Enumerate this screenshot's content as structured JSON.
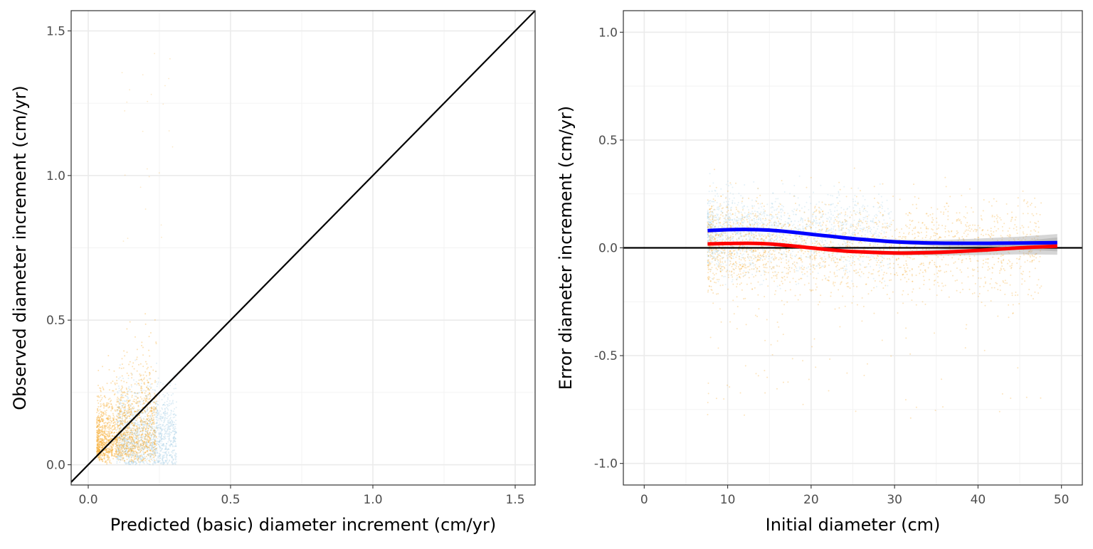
{
  "chart_data": [
    {
      "type": "scatter",
      "xlabel": "Predicted (basic) diameter increment (cm/yr)",
      "ylabel": "Observed diameter increment (cm/yr)",
      "xlim": [
        -0.06,
        1.57
      ],
      "ylim": [
        -0.07,
        1.57
      ],
      "x_ticks": [
        "0.0",
        "0.5",
        "1.0",
        "1.5"
      ],
      "x_tick_values": [
        0,
        0.5,
        1.0,
        1.5
      ],
      "y_ticks": [
        "0.0",
        "0.5",
        "1.0",
        "1.5"
      ],
      "y_tick_values": [
        0,
        0.5,
        1.0,
        1.5
      ],
      "grid": true,
      "reference_line": {
        "type": "identity",
        "slope": 1,
        "intercept": 0,
        "color": "#000000"
      },
      "series": [
        {
          "color": "#f5a623",
          "approx_x_range": [
            0.02,
            0.25
          ],
          "approx_y_range": [
            0.0,
            0.75
          ]
        },
        {
          "color": "#a6cfe6",
          "approx_x_range": [
            0.1,
            0.31
          ],
          "approx_y_range": [
            0.0,
            0.4
          ]
        }
      ]
    },
    {
      "type": "scatter",
      "xlabel": "Initial diameter (cm)",
      "ylabel": "Error diameter increment (cm/yr)",
      "xlim": [
        -2.5,
        52.5
      ],
      "ylim": [
        -1.1,
        1.1
      ],
      "x_ticks": [
        "0",
        "10",
        "20",
        "30",
        "40",
        "50"
      ],
      "x_tick_values": [
        0,
        10,
        20,
        30,
        40,
        50
      ],
      "y_ticks": [
        "-1.0",
        "-0.5",
        "0.0",
        "0.5",
        "1.0"
      ],
      "y_tick_values": [
        -1.0,
        -0.5,
        0.0,
        0.5,
        1.0
      ],
      "grid": true,
      "reference_line": {
        "type": "hline",
        "y": 0,
        "color": "#000000"
      },
      "series": [
        {
          "color": "#0000ff",
          "smooth_x": [
            7.6,
            10,
            12.5,
            15,
            17.5,
            20,
            22.5,
            25,
            30,
            35,
            40,
            45,
            49.5
          ],
          "smooth_y": [
            0.08,
            0.084,
            0.085,
            0.082,
            0.074,
            0.063,
            0.053,
            0.043,
            0.028,
            0.022,
            0.021,
            0.022,
            0.024
          ],
          "band_halfwidth": [
            0.006,
            0.005,
            0.005,
            0.005,
            0.006,
            0.006,
            0.007,
            0.008,
            0.01,
            0.014,
            0.022,
            0.03,
            0.04
          ]
        },
        {
          "color": "#ff0000",
          "smooth_x": [
            7.6,
            10,
            12.5,
            15,
            17.5,
            20,
            22.5,
            25,
            30,
            35,
            40,
            45,
            49.5
          ],
          "smooth_y": [
            0.018,
            0.02,
            0.021,
            0.018,
            0.01,
            0.0,
            -0.01,
            -0.017,
            -0.024,
            -0.021,
            -0.012,
            0.0,
            0.008
          ],
          "band_halfwidth": [
            0.006,
            0.005,
            0.005,
            0.005,
            0.006,
            0.006,
            0.007,
            0.008,
            0.01,
            0.014,
            0.022,
            0.03,
            0.04
          ]
        }
      ],
      "point_colors": [
        "#f5a623",
        "#a6cfe6"
      ],
      "approx_x_range": [
        7.6,
        49.5
      ],
      "approx_y_range": [
        -0.85,
        0.55
      ]
    }
  ]
}
